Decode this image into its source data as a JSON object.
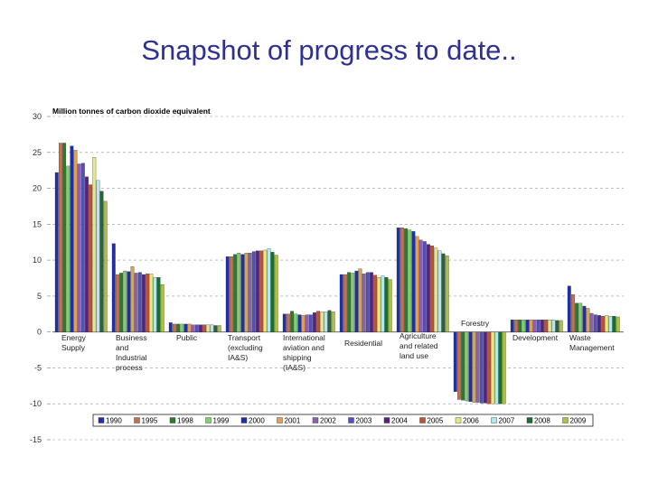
{
  "slide": {
    "title": "Snapshot of progress to date.."
  },
  "chart_data": {
    "type": "bar",
    "title": "",
    "ylabel": "Million tonnes of carbon dioxide equivalent",
    "xlabel": "",
    "ylim": [
      -15,
      30
    ],
    "yticks": [
      30,
      25,
      20,
      15,
      10,
      5,
      0,
      -5,
      -10,
      -15
    ],
    "grid": true,
    "legend_position": "bottom",
    "categories": [
      [
        "Energy",
        "Supply"
      ],
      [
        "Business",
        "and",
        "Industrial",
        "process"
      ],
      [
        "Public"
      ],
      [
        "Transport",
        "(excluding",
        "IA&S)"
      ],
      [
        "International",
        "aviation and",
        "shipping",
        "(IA&S)"
      ],
      [
        "Residential"
      ],
      [
        "Agriculture",
        "and related",
        "land use"
      ],
      [
        "Forestry"
      ],
      [
        "Development"
      ],
      [
        "Waste",
        "Management"
      ]
    ],
    "series": [
      {
        "name": "1990",
        "color": "#1f2fa8",
        "values": [
          22.2,
          12.3,
          1.3,
          10.5,
          2.5,
          8.0,
          14.5,
          -8.3,
          1.7,
          6.4
        ]
      },
      {
        "name": "1995",
        "color": "#c8704a",
        "values": [
          26.3,
          8.0,
          1.1,
          10.5,
          2.5,
          8.0,
          14.5,
          -9.4,
          1.7,
          5.2
        ]
      },
      {
        "name": "1998",
        "color": "#2d7a2d",
        "values": [
          26.3,
          8.2,
          1.1,
          10.8,
          2.9,
          8.3,
          14.4,
          -9.5,
          1.7,
          4.0
        ]
      },
      {
        "name": "1999",
        "color": "#80d070",
        "values": [
          23.1,
          8.5,
          1.1,
          11.0,
          2.5,
          8.2,
          14.2,
          -9.6,
          1.7,
          4.0
        ]
      },
      {
        "name": "2000",
        "color": "#1f2fa8",
        "values": [
          25.9,
          8.4,
          1.1,
          10.8,
          2.4,
          8.5,
          14.0,
          -9.7,
          1.7,
          3.6
        ]
      },
      {
        "name": "2001",
        "color": "#e0a050",
        "values": [
          25.3,
          9.1,
          1.1,
          11.0,
          2.3,
          8.8,
          13.3,
          -9.8,
          1.7,
          3.3
        ]
      },
      {
        "name": "2002",
        "color": "#9060b0",
        "values": [
          23.4,
          8.2,
          1.0,
          11.0,
          2.4,
          8.1,
          12.8,
          -9.8,
          1.7,
          2.6
        ]
      },
      {
        "name": "2003",
        "color": "#5050c0",
        "values": [
          23.5,
          8.3,
          1.0,
          11.2,
          2.4,
          8.3,
          12.6,
          -9.9,
          1.7,
          2.4
        ]
      },
      {
        "name": "2004",
        "color": "#5a2080",
        "values": [
          21.6,
          8.0,
          1.0,
          11.3,
          2.7,
          8.3,
          12.2,
          -9.9,
          1.7,
          2.3
        ]
      },
      {
        "name": "2005",
        "color": "#c05030",
        "values": [
          20.5,
          8.1,
          1.0,
          11.3,
          2.9,
          7.9,
          12.0,
          -10.0,
          1.7,
          2.2
        ]
      },
      {
        "name": "2006",
        "color": "#e8e880",
        "values": [
          24.3,
          8.1,
          1.0,
          11.4,
          2.8,
          7.6,
          11.7,
          -10.0,
          1.7,
          2.3
        ]
      },
      {
        "name": "2007",
        "color": "#b0e8f0",
        "values": [
          21.1,
          7.6,
          1.0,
          11.6,
          2.8,
          7.8,
          11.3,
          -10.0,
          1.7,
          2.2
        ]
      },
      {
        "name": "2008",
        "color": "#1f6a30",
        "values": [
          19.6,
          7.6,
          0.9,
          11.1,
          3.0,
          7.6,
          10.9,
          -10.0,
          1.6,
          2.2
        ]
      },
      {
        "name": "2009",
        "color": "#b0c040",
        "values": [
          18.2,
          6.6,
          0.9,
          10.7,
          2.8,
          7.3,
          10.6,
          -10.0,
          1.6,
          2.1
        ]
      }
    ]
  }
}
